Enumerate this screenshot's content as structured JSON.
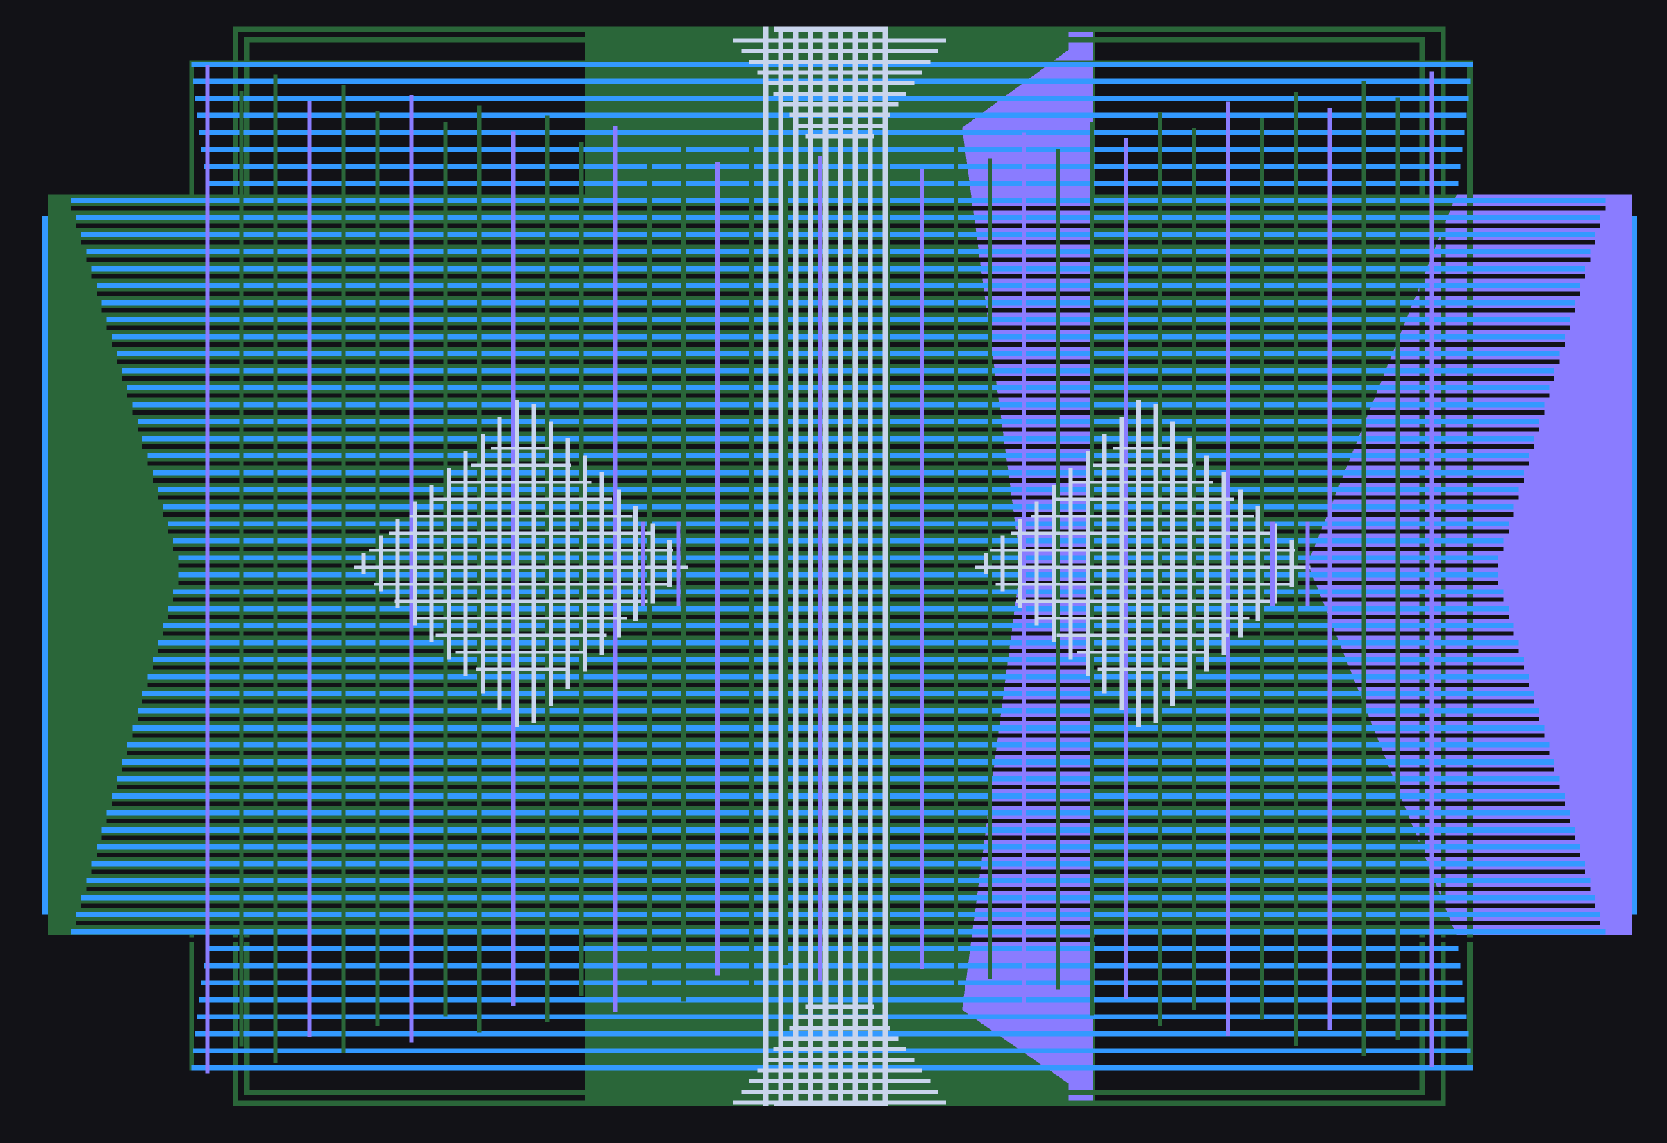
{
  "palette": {
    "background": "#121217",
    "green": "#2a6639",
    "blue": "#3399ff",
    "purple": "#8a7cff",
    "light": "#c8d4ec",
    "dark": "#121217"
  }
}
